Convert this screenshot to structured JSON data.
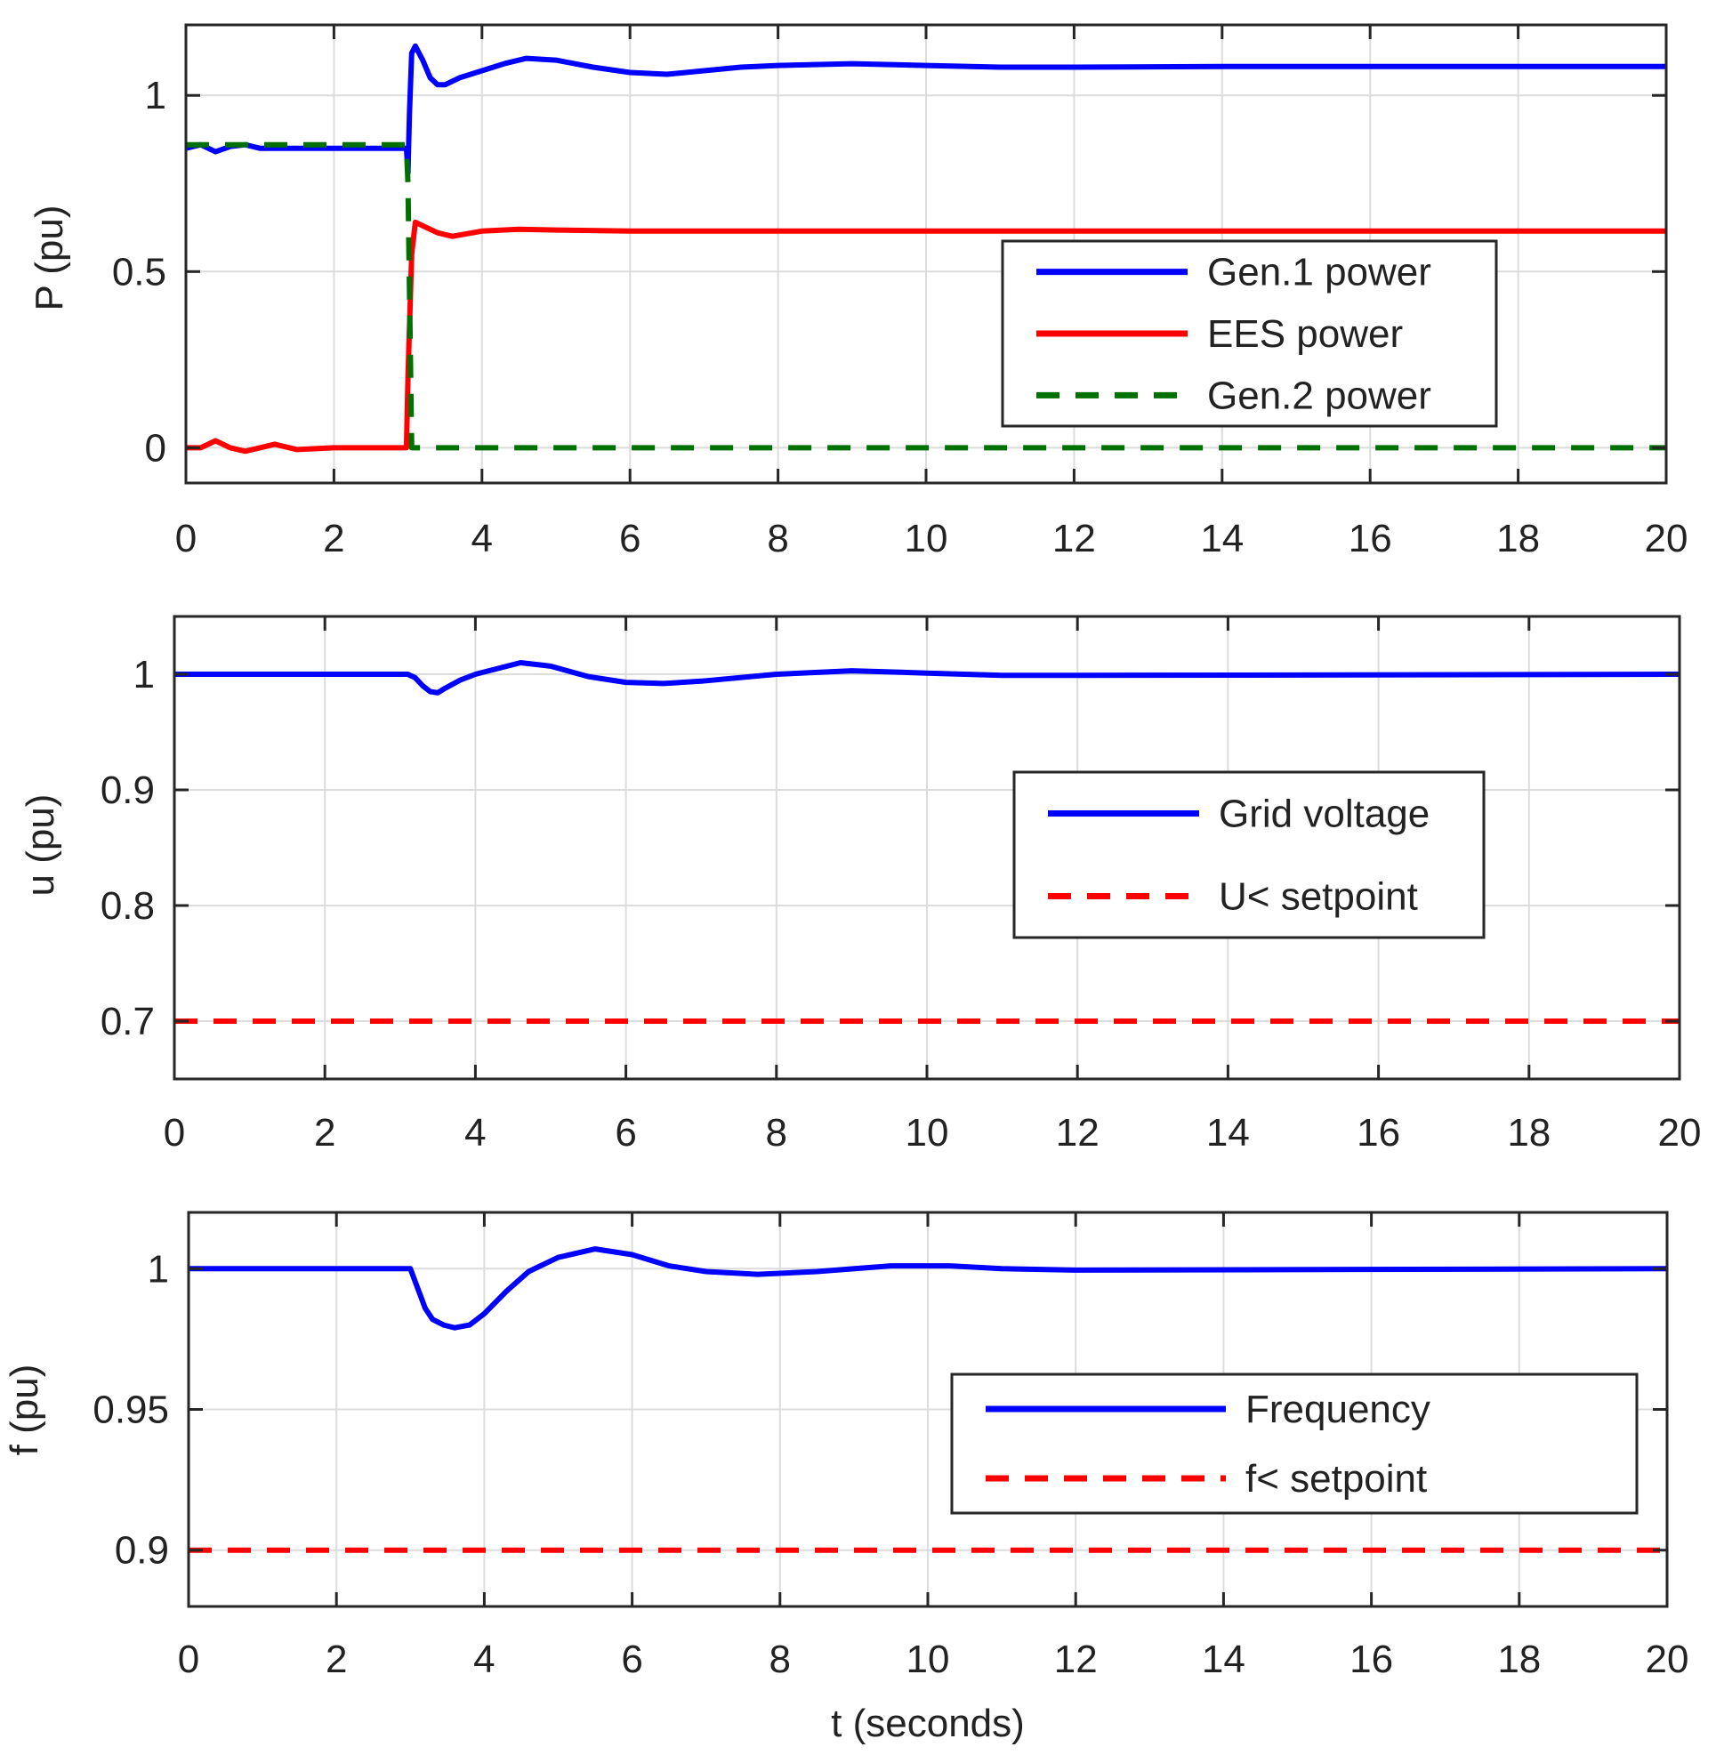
{
  "chart_data": [
    {
      "type": "line",
      "id": "power",
      "ylabel": "P (pu)",
      "xlabel": "",
      "xlim": [
        0,
        20
      ],
      "ylim": [
        -0.1,
        1.2
      ],
      "xticks": [
        "0",
        "2",
        "4",
        "6",
        "8",
        "10",
        "12",
        "14",
        "16",
        "18",
        "20"
      ],
      "yticks": [
        {
          "value": 0,
          "label": "0"
        },
        {
          "value": 0.5,
          "label": "0.5"
        },
        {
          "value": 1,
          "label": "1"
        }
      ],
      "grid": true,
      "legend_position": "center-right",
      "series": [
        {
          "name": "Gen.1 power",
          "color": "#0000ff",
          "dash": "solid",
          "x": [
            0,
            0.2,
            0.4,
            0.6,
            0.8,
            1.0,
            2.0,
            2.98,
            3.0,
            3.02,
            3.05,
            3.1,
            3.2,
            3.3,
            3.4,
            3.5,
            3.7,
            4.0,
            4.3,
            4.6,
            5.0,
            5.5,
            6.0,
            6.5,
            7.0,
            7.5,
            8.0,
            9.0,
            10.0,
            11.0,
            12.0,
            14.0,
            20.0
          ],
          "y": [
            0.85,
            0.86,
            0.84,
            0.855,
            0.86,
            0.85,
            0.85,
            0.85,
            0.78,
            0.95,
            1.12,
            1.14,
            1.1,
            1.05,
            1.03,
            1.03,
            1.05,
            1.07,
            1.09,
            1.105,
            1.1,
            1.08,
            1.065,
            1.06,
            1.07,
            1.08,
            1.085,
            1.09,
            1.085,
            1.08,
            1.08,
            1.082,
            1.082
          ]
        },
        {
          "name": "EES power",
          "color": "#ff0000",
          "dash": "solid",
          "x": [
            0,
            0.2,
            0.4,
            0.6,
            0.8,
            1.0,
            1.2,
            1.5,
            2.0,
            2.98,
            3.0,
            3.05,
            3.1,
            3.2,
            3.4,
            3.6,
            4.0,
            4.5,
            5.0,
            6.0,
            8.0,
            20.0
          ],
          "y": [
            0.0,
            0.0,
            0.02,
            0.0,
            -0.01,
            0.0,
            0.01,
            -0.005,
            0.0,
            0.0,
            0.2,
            0.55,
            0.64,
            0.63,
            0.61,
            0.6,
            0.615,
            0.62,
            0.618,
            0.615,
            0.615,
            0.615
          ]
        },
        {
          "name": "Gen.2 power",
          "color": "#007000",
          "dash": "dashed",
          "x": [
            0,
            1.0,
            2.98,
            3.0,
            3.05,
            20.0
          ],
          "y": [
            0.86,
            0.86,
            0.86,
            0.75,
            0.0,
            0.0
          ]
        }
      ]
    },
    {
      "type": "line",
      "id": "voltage",
      "ylabel": "u (pu)",
      "xlabel": "",
      "xlim": [
        0,
        20
      ],
      "ylim": [
        0.65,
        1.05
      ],
      "xticks": [
        "0",
        "2",
        "4",
        "6",
        "8",
        "10",
        "12",
        "14",
        "16",
        "18",
        "20"
      ],
      "yticks": [
        {
          "value": 0.7,
          "label": "0.7"
        },
        {
          "value": 0.8,
          "label": "0.8"
        },
        {
          "value": 0.9,
          "label": "0.9"
        },
        {
          "value": 1,
          "label": "1"
        }
      ],
      "grid": true,
      "legend_position": "center-right",
      "series": [
        {
          "name": "Grid voltage",
          "color": "#0000ff",
          "dash": "solid",
          "x": [
            0,
            3.1,
            3.2,
            3.3,
            3.4,
            3.5,
            3.6,
            3.8,
            4.0,
            4.3,
            4.6,
            5.0,
            5.5,
            6.0,
            6.5,
            7.0,
            8.0,
            9.0,
            10.0,
            11.0,
            12.0,
            20.0
          ],
          "y": [
            1.0,
            1.0,
            0.997,
            0.99,
            0.985,
            0.984,
            0.988,
            0.995,
            1.0,
            1.005,
            1.01,
            1.007,
            0.998,
            0.993,
            0.992,
            0.994,
            1.0,
            1.003,
            1.001,
            0.999,
            0.999,
            1.0
          ]
        },
        {
          "name": "U< setpoint",
          "color": "#ff0000",
          "dash": "dashed",
          "x": [
            0,
            20
          ],
          "y": [
            0.7,
            0.7
          ]
        }
      ]
    },
    {
      "type": "line",
      "id": "frequency",
      "ylabel": "f (pu)",
      "xlabel": "t (seconds)",
      "xlim": [
        0,
        20
      ],
      "ylim": [
        0.88,
        1.02
      ],
      "xticks": [
        "0",
        "2",
        "4",
        "6",
        "8",
        "10",
        "12",
        "14",
        "16",
        "18",
        "20"
      ],
      "yticks": [
        {
          "value": 0.9,
          "label": "0.9"
        },
        {
          "value": 0.95,
          "label": "0.95"
        },
        {
          "value": 1,
          "label": "1"
        }
      ],
      "grid": true,
      "legend_position": "center-right",
      "series": [
        {
          "name": "Frequency",
          "color": "#0000ff",
          "dash": "solid",
          "x": [
            0,
            3.0,
            3.1,
            3.2,
            3.3,
            3.45,
            3.6,
            3.8,
            4.0,
            4.3,
            4.6,
            5.0,
            5.5,
            6.0,
            6.5,
            7.0,
            7.7,
            8.5,
            9.5,
            10.3,
            11.0,
            12.0,
            20.0
          ],
          "y": [
            1.0,
            1.0,
            0.993,
            0.986,
            0.982,
            0.98,
            0.979,
            0.98,
            0.984,
            0.992,
            0.999,
            1.004,
            1.007,
            1.005,
            1.001,
            0.999,
            0.998,
            0.999,
            1.001,
            1.001,
            1.0,
            0.9995,
            1.0
          ]
        },
        {
          "name": "f< setpoint",
          "color": "#ff0000",
          "dash": "dashed",
          "x": [
            0,
            20
          ],
          "y": [
            0.9,
            0.9
          ]
        }
      ]
    }
  ]
}
